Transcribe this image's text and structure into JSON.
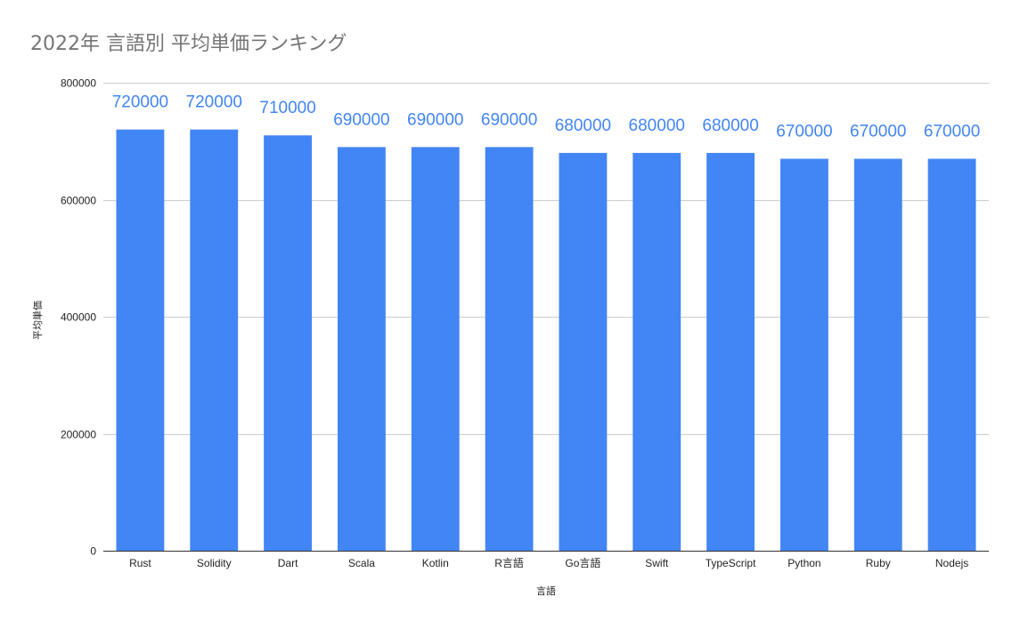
{
  "chart_data": {
    "type": "bar",
    "title": "2022年 言語別 平均単価ランキング",
    "xlabel": "言語",
    "ylabel": "平均単価",
    "categories": [
      "Rust",
      "Solidity",
      "Dart",
      "Scala",
      "Kotlin",
      "R言語",
      "Go言語",
      "Swift",
      "TypeScript",
      "Python",
      "Ruby",
      "Nodejs"
    ],
    "values": [
      720000,
      720000,
      710000,
      690000,
      690000,
      690000,
      680000,
      680000,
      680000,
      670000,
      670000,
      670000
    ],
    "ylim": [
      0,
      800000
    ],
    "yticks": [
      0,
      200000,
      400000,
      600000,
      800000
    ],
    "grid": true,
    "legend": "none",
    "bar_color": "#4285f4",
    "label_color": "#4285f4",
    "title_color": "#757575",
    "grid_color": "#cccccc",
    "axis_color": "#333333"
  }
}
